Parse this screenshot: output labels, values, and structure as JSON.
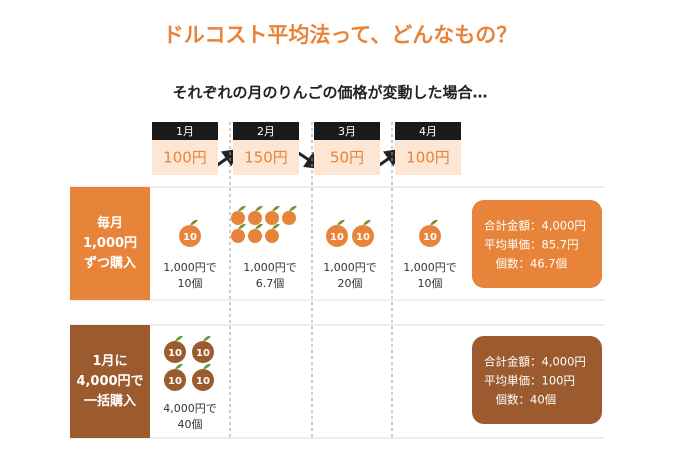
{
  "header": {
    "title": "ドルコスト平均法って、どんなもの？",
    "subtitle": "それぞれの月のりんごの価格が変動した場合…"
  },
  "months": [
    {
      "label": "1月",
      "price": "100円"
    },
    {
      "label": "2月",
      "price": "150円"
    },
    {
      "label": "3月",
      "price": "50円"
    },
    {
      "label": "4月",
      "price": "100円"
    }
  ],
  "plans": [
    {
      "label_lines": [
        "毎月",
        "1,000円",
        "ずつ購入"
      ],
      "purchases": [
        {
          "apple_labels": [
            "10"
          ],
          "text_lines": [
            "1,000円で",
            "10個"
          ]
        },
        {
          "apple_labels": [],
          "text_lines": [
            "1,000円で",
            "6.7個"
          ]
        },
        {
          "apple_labels": [
            "10",
            "10"
          ],
          "text_lines": [
            "1,000円で",
            "20個"
          ]
        },
        {
          "apple_labels": [
            "10"
          ],
          "text_lines": [
            "1,000円で",
            "10個"
          ]
        }
      ],
      "summary": [
        "合計金額：4,000円",
        "平均単価：85.7円",
        "　個数：46.7個"
      ]
    },
    {
      "label_lines": [
        "1月に",
        "4,000円で",
        "一括購入"
      ],
      "purchases": [
        {
          "apple_labels": [
            "10",
            "10",
            "10",
            "10"
          ],
          "text_lines": [
            "4,000円で",
            "40個"
          ]
        }
      ],
      "summary": [
        "合計金額：4,000円",
        "平均単価：100円",
        "　個数：40個"
      ]
    }
  ]
}
